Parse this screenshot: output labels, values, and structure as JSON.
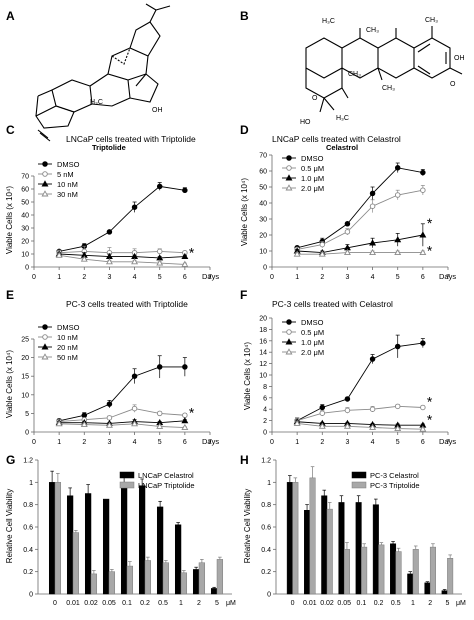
{
  "panels": {
    "A": {
      "letter": "A",
      "name": "Triptolide"
    },
    "B": {
      "letter": "B",
      "name": "Celastrol"
    }
  },
  "structure_labels": {
    "triptolide": [
      "H₃C",
      "OH"
    ],
    "celastrol": [
      "H₃C",
      "CH₃",
      "CH₃",
      "CH₃",
      "CH₃",
      "OH",
      "O",
      "HO",
      "O",
      "H₃C"
    ]
  },
  "colors": {
    "black": "#000000",
    "grey": "#a8a8a8",
    "axis": "#6a6a6a"
  },
  "chart_data": [
    {
      "id": "C",
      "letter": "C",
      "type": "line",
      "title": "LNCaP cells treated with Triptolide",
      "ylabel": "Viable Cells (x 10⁴)",
      "x_unit": "Days",
      "xlim": [
        0,
        7
      ],
      "ylim": [
        0,
        70
      ],
      "x_ticks": [
        "0",
        "1",
        "2",
        "3",
        "4",
        "5",
        "6",
        "7"
      ],
      "y_ticks": [
        "0",
        "10",
        "20",
        "30",
        "40",
        "50",
        "60",
        "70"
      ],
      "legend": "top-left",
      "x": [
        1,
        2,
        3,
        4,
        5,
        6
      ],
      "series": [
        {
          "name": "DMSO",
          "marker": "filled-circle",
          "values": [
            12,
            16,
            27,
            46,
            62,
            59
          ],
          "errors": [
            1,
            2,
            1,
            4,
            3,
            2
          ]
        },
        {
          "name": "5 nM",
          "marker": "open-circle",
          "values": [
            11,
            12,
            11,
            11,
            12,
            11
          ],
          "errors": [
            2,
            4,
            4,
            3,
            2,
            1
          ]
        },
        {
          "name": "10 nM",
          "marker": "filled-triangle",
          "values": [
            10,
            9,
            8,
            8,
            7,
            8
          ],
          "errors": [
            1,
            2,
            2,
            1,
            1,
            1
          ]
        },
        {
          "name": "30 nM",
          "marker": "open-triangle",
          "values": [
            9,
            6,
            4,
            4,
            3,
            2
          ],
          "errors": [
            1,
            1,
            1,
            1,
            1,
            1
          ]
        }
      ],
      "annotations": [
        {
          "text": "*",
          "x": 6,
          "y": 12
        }
      ]
    },
    {
      "id": "D",
      "letter": "D",
      "type": "line",
      "title": "LNCaP cells treated with Celastrol",
      "ylabel": "Viable Cells (x 10⁴)",
      "x_unit": "Days",
      "xlim": [
        0,
        7
      ],
      "ylim": [
        0,
        70
      ],
      "x_ticks": [
        "0",
        "1",
        "2",
        "3",
        "4",
        "5",
        "6",
        "7"
      ],
      "y_ticks": [
        "0",
        "10",
        "20",
        "30",
        "40",
        "50",
        "60",
        "70"
      ],
      "legend": "top-left",
      "x": [
        1,
        2,
        3,
        4,
        5,
        6
      ],
      "series": [
        {
          "name": "DMSO",
          "marker": "filled-circle",
          "values": [
            12,
            16,
            27,
            46,
            62,
            59
          ],
          "errors": [
            1,
            2,
            1,
            4,
            3,
            2
          ]
        },
        {
          "name": "0.5 μM",
          "marker": "open-circle",
          "values": [
            11,
            14,
            22,
            38,
            45,
            48
          ],
          "errors": [
            1,
            2,
            2,
            4,
            3,
            3
          ]
        },
        {
          "name": "1.0 μM",
          "marker": "filled-triangle",
          "values": [
            10,
            9,
            12,
            15,
            17,
            20
          ],
          "errors": [
            1,
            1,
            2,
            3,
            4,
            7
          ]
        },
        {
          "name": "2.0 μM",
          "marker": "open-triangle",
          "values": [
            8,
            8,
            9,
            9,
            9,
            9
          ],
          "errors": [
            1,
            1,
            1,
            1,
            1,
            1
          ]
        }
      ],
      "annotations": [
        {
          "text": "*",
          "x": 6,
          "y": 28
        },
        {
          "text": "*",
          "x": 6,
          "y": 11
        }
      ]
    },
    {
      "id": "E",
      "letter": "E",
      "type": "line",
      "title": "PC-3 cells treated with Triptolide",
      "ylabel": "Viable Cells (x 10⁴)",
      "x_unit": "Days",
      "xlim": [
        0,
        7
      ],
      "ylim": [
        0,
        25
      ],
      "x_ticks": [
        "0",
        "1",
        "2",
        "3",
        "4",
        "5",
        "6",
        "7"
      ],
      "y_ticks": [
        "0",
        "5",
        "10",
        "15",
        "20",
        "25"
      ],
      "legend": "top-left",
      "x": [
        1,
        2,
        3,
        4,
        5,
        6
      ],
      "series": [
        {
          "name": "DMSO",
          "marker": "filled-circle",
          "values": [
            3,
            4.5,
            7.5,
            15,
            17.5,
            17.5
          ],
          "errors": [
            0.5,
            0.7,
            1,
            2,
            3,
            2.5
          ]
        },
        {
          "name": "10 nM",
          "marker": "open-circle",
          "values": [
            2.8,
            3.3,
            3.8,
            6.3,
            5,
            4.5
          ],
          "errors": [
            0.5,
            0.5,
            0.5,
            1,
            0.5,
            0.5
          ]
        },
        {
          "name": "20 nM",
          "marker": "filled-triangle",
          "values": [
            2.5,
            2.5,
            2.3,
            2.8,
            2.5,
            3
          ],
          "errors": [
            0.3,
            0.3,
            0.3,
            0.5,
            0.3,
            0.3
          ]
        },
        {
          "name": "50 nM",
          "marker": "open-triangle",
          "values": [
            2.2,
            2,
            1.8,
            2.2,
            1.5,
            1.2
          ],
          "errors": [
            0.3,
            0.3,
            0.3,
            0.3,
            0.3,
            0.2
          ]
        }
      ],
      "annotations": [
        {
          "text": "*",
          "x": 6,
          "y": 5.5
        }
      ]
    },
    {
      "id": "F",
      "letter": "F",
      "type": "line",
      "title": "PC-3 cells treated with Celastrol",
      "ylabel": "Viable Cells (x 10⁴)",
      "x_unit": "Days",
      "xlim": [
        0,
        7
      ],
      "ylim": [
        0,
        20
      ],
      "x_ticks": [
        "0",
        "1",
        "2",
        "3",
        "4",
        "5",
        "6",
        "7"
      ],
      "y_ticks": [
        "0",
        "2",
        "4",
        "6",
        "8",
        "10",
        "12",
        "14",
        "16",
        "18",
        "20"
      ],
      "legend": "top-left",
      "x": [
        1,
        2,
        3,
        4,
        5,
        6
      ],
      "series": [
        {
          "name": "DMSO",
          "marker": "filled-circle",
          "values": [
            2,
            4.3,
            5.8,
            12.8,
            15,
            15.6
          ],
          "errors": [
            0.5,
            0.5,
            0.3,
            0.8,
            2,
            0.8
          ]
        },
        {
          "name": "0.5 μM",
          "marker": "open-circle",
          "values": [
            2,
            3.3,
            3.8,
            4,
            4.5,
            4.3
          ],
          "errors": [
            0.5,
            0.5,
            0.5,
            0.5,
            0.3,
            0.3
          ]
        },
        {
          "name": "1.0 μM",
          "marker": "filled-triangle",
          "values": [
            1.8,
            1.5,
            1.5,
            1.3,
            1.2,
            1.2
          ],
          "errors": [
            0.3,
            0.2,
            0.2,
            0.2,
            0.2,
            0.2
          ]
        },
        {
          "name": "2.0 μM",
          "marker": "open-triangle",
          "values": [
            1.5,
            1,
            1,
            0.8,
            0.6,
            0.5
          ],
          "errors": [
            0.3,
            0.2,
            0.2,
            0.2,
            0.1,
            0.1
          ]
        }
      ],
      "annotations": [
        {
          "text": "*",
          "x": 6,
          "y": 5.5
        },
        {
          "text": "*",
          "x": 6,
          "y": 2.4
        }
      ]
    },
    {
      "id": "G",
      "letter": "G",
      "type": "bar",
      "ylabel": "Relative Cell Viability",
      "x_unit": "μM",
      "ylim": [
        0,
        1.2
      ],
      "y_ticks": [
        "0",
        "0.2",
        "0.4",
        "0.6",
        "0.8",
        "1",
        "1.2"
      ],
      "categories": [
        "0",
        "0.01",
        "0.02",
        "0.05",
        "0.1",
        "0.2",
        "0.5",
        "1",
        "2",
        "5"
      ],
      "legend": "top-right",
      "series": [
        {
          "name": "LNCaP Celastrol",
          "color": "black",
          "values": [
            1.0,
            0.88,
            0.9,
            0.85,
            0.98,
            0.97,
            0.78,
            0.62,
            0.22,
            0.05
          ],
          "errors": [
            0.1,
            0.07,
            0.08,
            0,
            0.08,
            0.06,
            0.05,
            0.02,
            0.02,
            0.01
          ]
        },
        {
          "name": "LNCaP Triptolide",
          "color": "grey",
          "values": [
            1.0,
            0.55,
            0.18,
            0.2,
            0.25,
            0.3,
            0.28,
            0.19,
            0.28,
            0.31
          ],
          "errors": [
            0.08,
            0.02,
            0.03,
            0.02,
            0.04,
            0.03,
            0.02,
            0.02,
            0.03,
            0.02
          ]
        }
      ]
    },
    {
      "id": "H",
      "letter": "H",
      "type": "bar",
      "ylabel": "Relative Cell Viability",
      "x_unit": "μM",
      "ylim": [
        0,
        1.2
      ],
      "y_ticks": [
        "0",
        "0.2",
        "0.4",
        "0.6",
        "0.8",
        "1",
        "1.2"
      ],
      "categories": [
        "0",
        "0.01",
        "0.02",
        "0.05",
        "0.1",
        "0.2",
        "0.5",
        "1",
        "2",
        "5"
      ],
      "legend": "top-right",
      "series": [
        {
          "name": "PC-3 Celastrol",
          "color": "black",
          "values": [
            1.0,
            0.75,
            0.88,
            0.82,
            0.82,
            0.8,
            0.45,
            0.18,
            0.1,
            0.03
          ],
          "errors": [
            0.06,
            0.05,
            0.05,
            0.06,
            0.06,
            0.05,
            0.02,
            0.02,
            0.01,
            0.01
          ]
        },
        {
          "name": "PC-3 Triptolide",
          "color": "grey",
          "values": [
            1.0,
            1.04,
            0.76,
            0.4,
            0.42,
            0.44,
            0.38,
            0.4,
            0.42,
            0.32
          ],
          "errors": [
            0.04,
            0.1,
            0.06,
            0.06,
            0.03,
            0.02,
            0.03,
            0.03,
            0.03,
            0.03
          ]
        }
      ]
    }
  ]
}
